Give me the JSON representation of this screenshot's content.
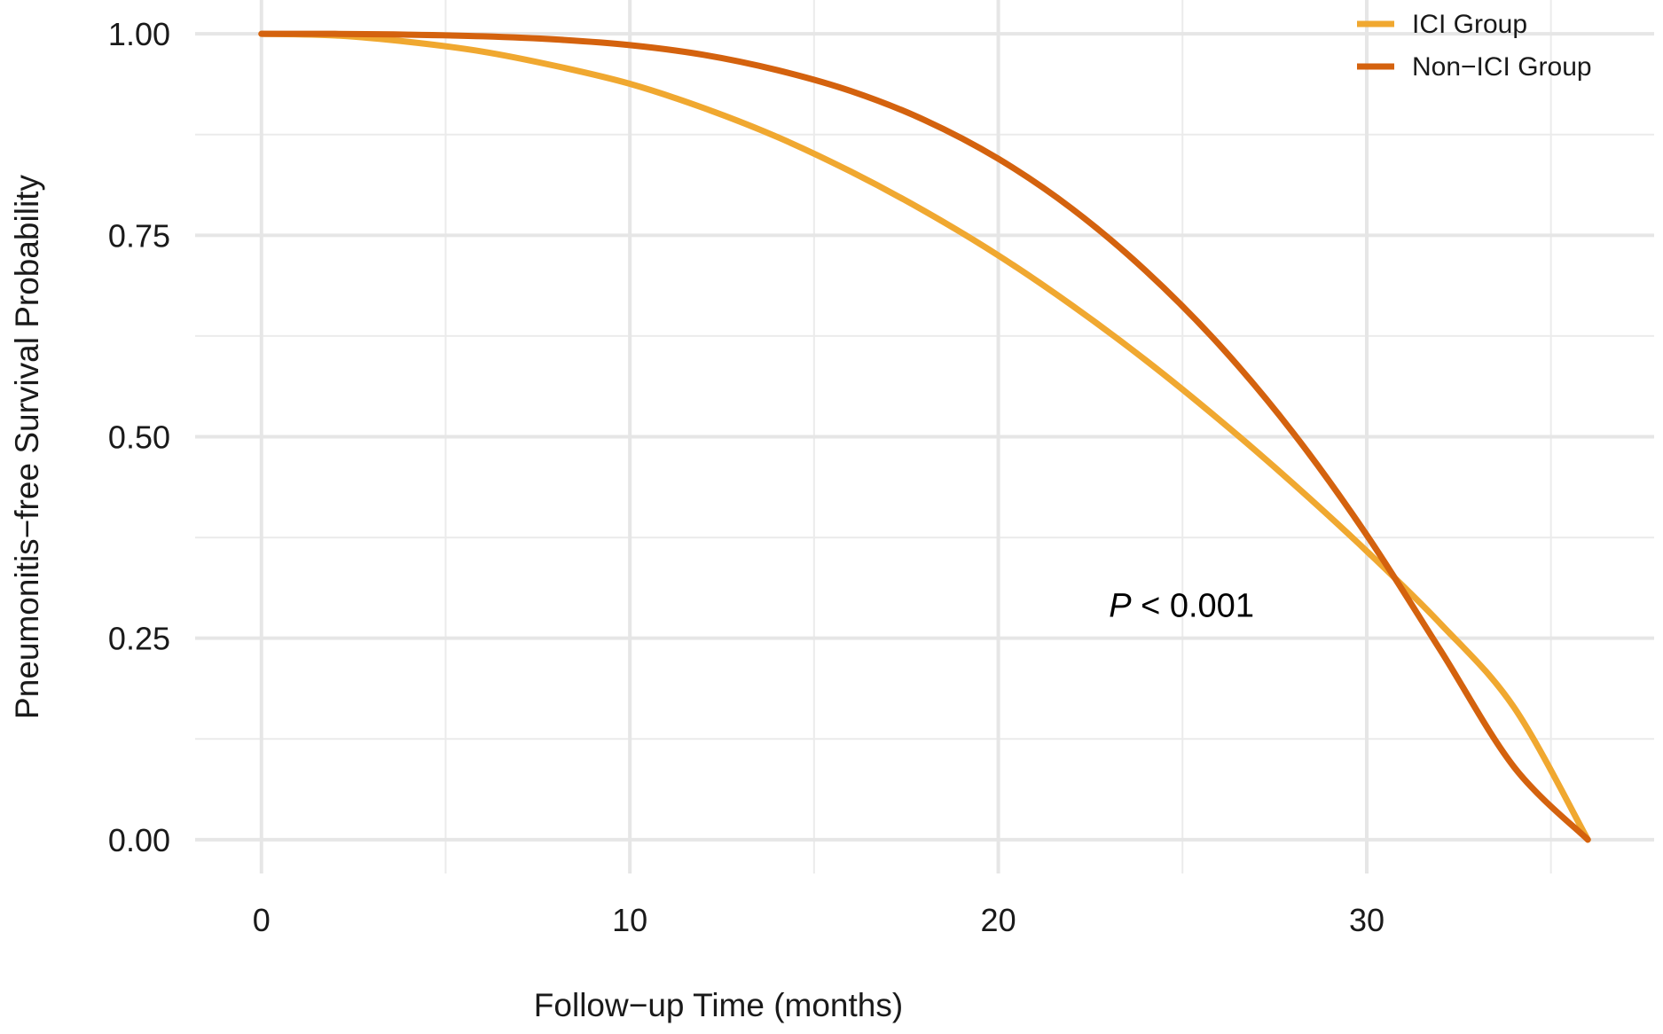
{
  "chart_data": {
    "type": "line",
    "title": "",
    "xlabel": "Follow−up Time (months)",
    "ylabel": "Pneumonitis−free Survival Probability",
    "xlim": [
      -1.8,
      37.8
    ],
    "ylim": [
      -0.042,
      1.042
    ],
    "x_ticks": [
      0,
      10,
      20,
      30
    ],
    "x_tick_labels": [
      "0",
      "10",
      "20",
      "30"
    ],
    "y_ticks": [
      0,
      0.25,
      0.5,
      0.75,
      1.0
    ],
    "y_tick_labels": [
      "0.00",
      "0.25",
      "0.50",
      "0.75",
      "1.00"
    ],
    "x_minor_grid": [
      5,
      15,
      25,
      35
    ],
    "y_minor_grid": [
      0.125,
      0.375,
      0.625,
      0.875
    ],
    "grid": true,
    "legend_position": "top-right",
    "annotation": {
      "italic": "P",
      "rest": " < 0.001",
      "x": 23,
      "y": 0.29
    },
    "x": [
      0,
      2,
      4,
      6,
      8,
      10,
      12,
      14,
      16,
      18,
      20,
      22,
      24,
      26,
      28,
      30,
      32,
      34,
      36
    ],
    "series": [
      {
        "name": "ICI Group",
        "color": "#F0A830",
        "values": [
          1.0,
          0.998,
          0.99,
          0.978,
          0.96,
          0.938,
          0.908,
          0.872,
          0.829,
          0.78,
          0.725,
          0.663,
          0.595,
          0.521,
          0.442,
          0.358,
          0.268,
          0.164,
          0.0
        ]
      },
      {
        "name": "Non−ICI Group",
        "color": "#D4620E",
        "values": [
          1.0,
          1.0,
          0.999,
          0.997,
          0.993,
          0.986,
          0.974,
          0.955,
          0.929,
          0.893,
          0.845,
          0.783,
          0.706,
          0.614,
          0.505,
          0.378,
          0.235,
          0.09,
          0.0
        ]
      }
    ]
  }
}
